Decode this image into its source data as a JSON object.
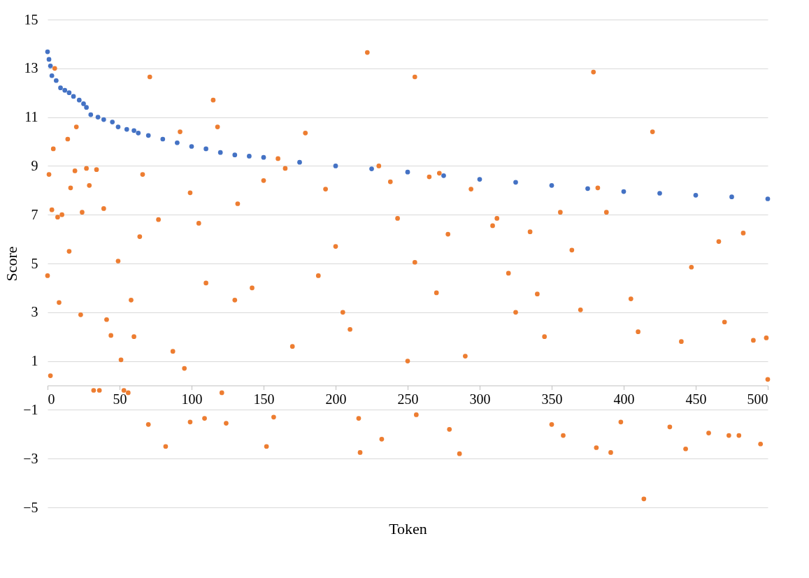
{
  "chart_data": {
    "type": "scatter",
    "xlabel": "Token",
    "ylabel": "Score",
    "xlim": [
      0,
      500
    ],
    "xticks": [
      0,
      50,
      100,
      150,
      200,
      250,
      300,
      350,
      400,
      450,
      500
    ],
    "ylim": [
      -5,
      15
    ],
    "yticks": [
      -5,
      -3,
      -1,
      1,
      3,
      5,
      7,
      9,
      11,
      13,
      15
    ],
    "grid": "y",
    "marker": "circle",
    "series": [
      {
        "color": "#4472c4",
        "x": [
          0,
          1,
          2,
          3,
          6,
          9,
          12,
          15,
          18,
          22,
          25,
          27,
          30,
          35,
          39,
          45,
          49,
          55,
          60,
          63,
          70,
          80,
          90,
          100,
          110,
          120,
          130,
          140,
          150,
          175,
          200,
          225,
          250,
          275,
          300,
          325,
          350,
          375,
          400,
          425,
          450,
          475,
          500
        ],
        "values": [
          13.68,
          13.37,
          13.1,
          12.7,
          12.5,
          12.2,
          12.1,
          12.0,
          11.85,
          11.7,
          11.55,
          11.4,
          11.1,
          11.0,
          10.9,
          10.8,
          10.6,
          10.5,
          10.45,
          10.35,
          10.25,
          10.1,
          9.95,
          9.8,
          9.7,
          9.55,
          9.45,
          9.4,
          9.35,
          9.15,
          9.0,
          8.88,
          8.75,
          8.6,
          8.45,
          8.33,
          8.2,
          8.07,
          7.95,
          7.88,
          7.8,
          7.73,
          7.65
        ]
      },
      {
        "color": "#ed7d31",
        "x": [
          0,
          1,
          2,
          3,
          5,
          4,
          7,
          8,
          10,
          14,
          15,
          16,
          19,
          20,
          23,
          24,
          27,
          29,
          32,
          34,
          36,
          39,
          41,
          44,
          49,
          51,
          53,
          56,
          58,
          64,
          66,
          71,
          70,
          77,
          82,
          87,
          92,
          95,
          99,
          99,
          105,
          109,
          115,
          118,
          121,
          124,
          132,
          142,
          150,
          152,
          157,
          160,
          165,
          179,
          188,
          193,
          200,
          205,
          216,
          217,
          222,
          230,
          232,
          238,
          243,
          250,
          255,
          255,
          256,
          265,
          272,
          278,
          279,
          286,
          294,
          309,
          312,
          325,
          335,
          340,
          350,
          356,
          358,
          364,
          379,
          381,
          382,
          388,
          391,
          398,
          405,
          414,
          420,
          432,
          443,
          447,
          459,
          466,
          473,
          480,
          483,
          490,
          495,
          499,
          500,
          60,
          110,
          130,
          170,
          210,
          270,
          290,
          320,
          345,
          370,
          410,
          440,
          470
        ],
        "values": [
          4.5,
          8.65,
          0.4,
          7.2,
          13.0,
          9.7,
          6.9,
          3.4,
          7.0,
          10.1,
          5.5,
          8.1,
          8.8,
          10.6,
          2.9,
          7.1,
          8.9,
          8.2,
          -0.2,
          8.85,
          -0.2,
          7.25,
          2.7,
          2.05,
          5.1,
          1.05,
          -0.2,
          -0.3,
          3.5,
          6.1,
          8.65,
          12.65,
          -1.6,
          6.8,
          -2.5,
          1.4,
          10.4,
          0.7,
          7.9,
          -1.5,
          6.65,
          -1.35,
          11.7,
          10.6,
          -0.3,
          -1.55,
          7.45,
          4.0,
          8.4,
          -2.5,
          -1.3,
          9.3,
          8.9,
          10.35,
          4.5,
          8.05,
          5.7,
          3.0,
          -1.35,
          -2.75,
          13.65,
          9.0,
          -2.2,
          8.35,
          6.85,
          1.0,
          5.05,
          12.65,
          -1.2,
          8.55,
          8.7,
          6.2,
          -1.8,
          -2.8,
          8.05,
          6.55,
          6.85,
          3.0,
          6.3,
          3.75,
          -1.6,
          7.1,
          -2.05,
          5.55,
          12.85,
          -2.55,
          8.1,
          7.1,
          -2.75,
          -1.5,
          3.55,
          -4.65,
          10.4,
          -1.7,
          -2.6,
          4.85,
          -1.95,
          5.9,
          -2.05,
          -2.05,
          6.25,
          1.85,
          -2.4,
          1.95,
          0.25,
          2.0,
          4.2,
          3.5,
          1.6,
          2.3,
          3.8,
          1.2,
          4.6,
          2.0,
          3.1,
          2.2,
          1.8,
          2.6
        ]
      }
    ]
  }
}
